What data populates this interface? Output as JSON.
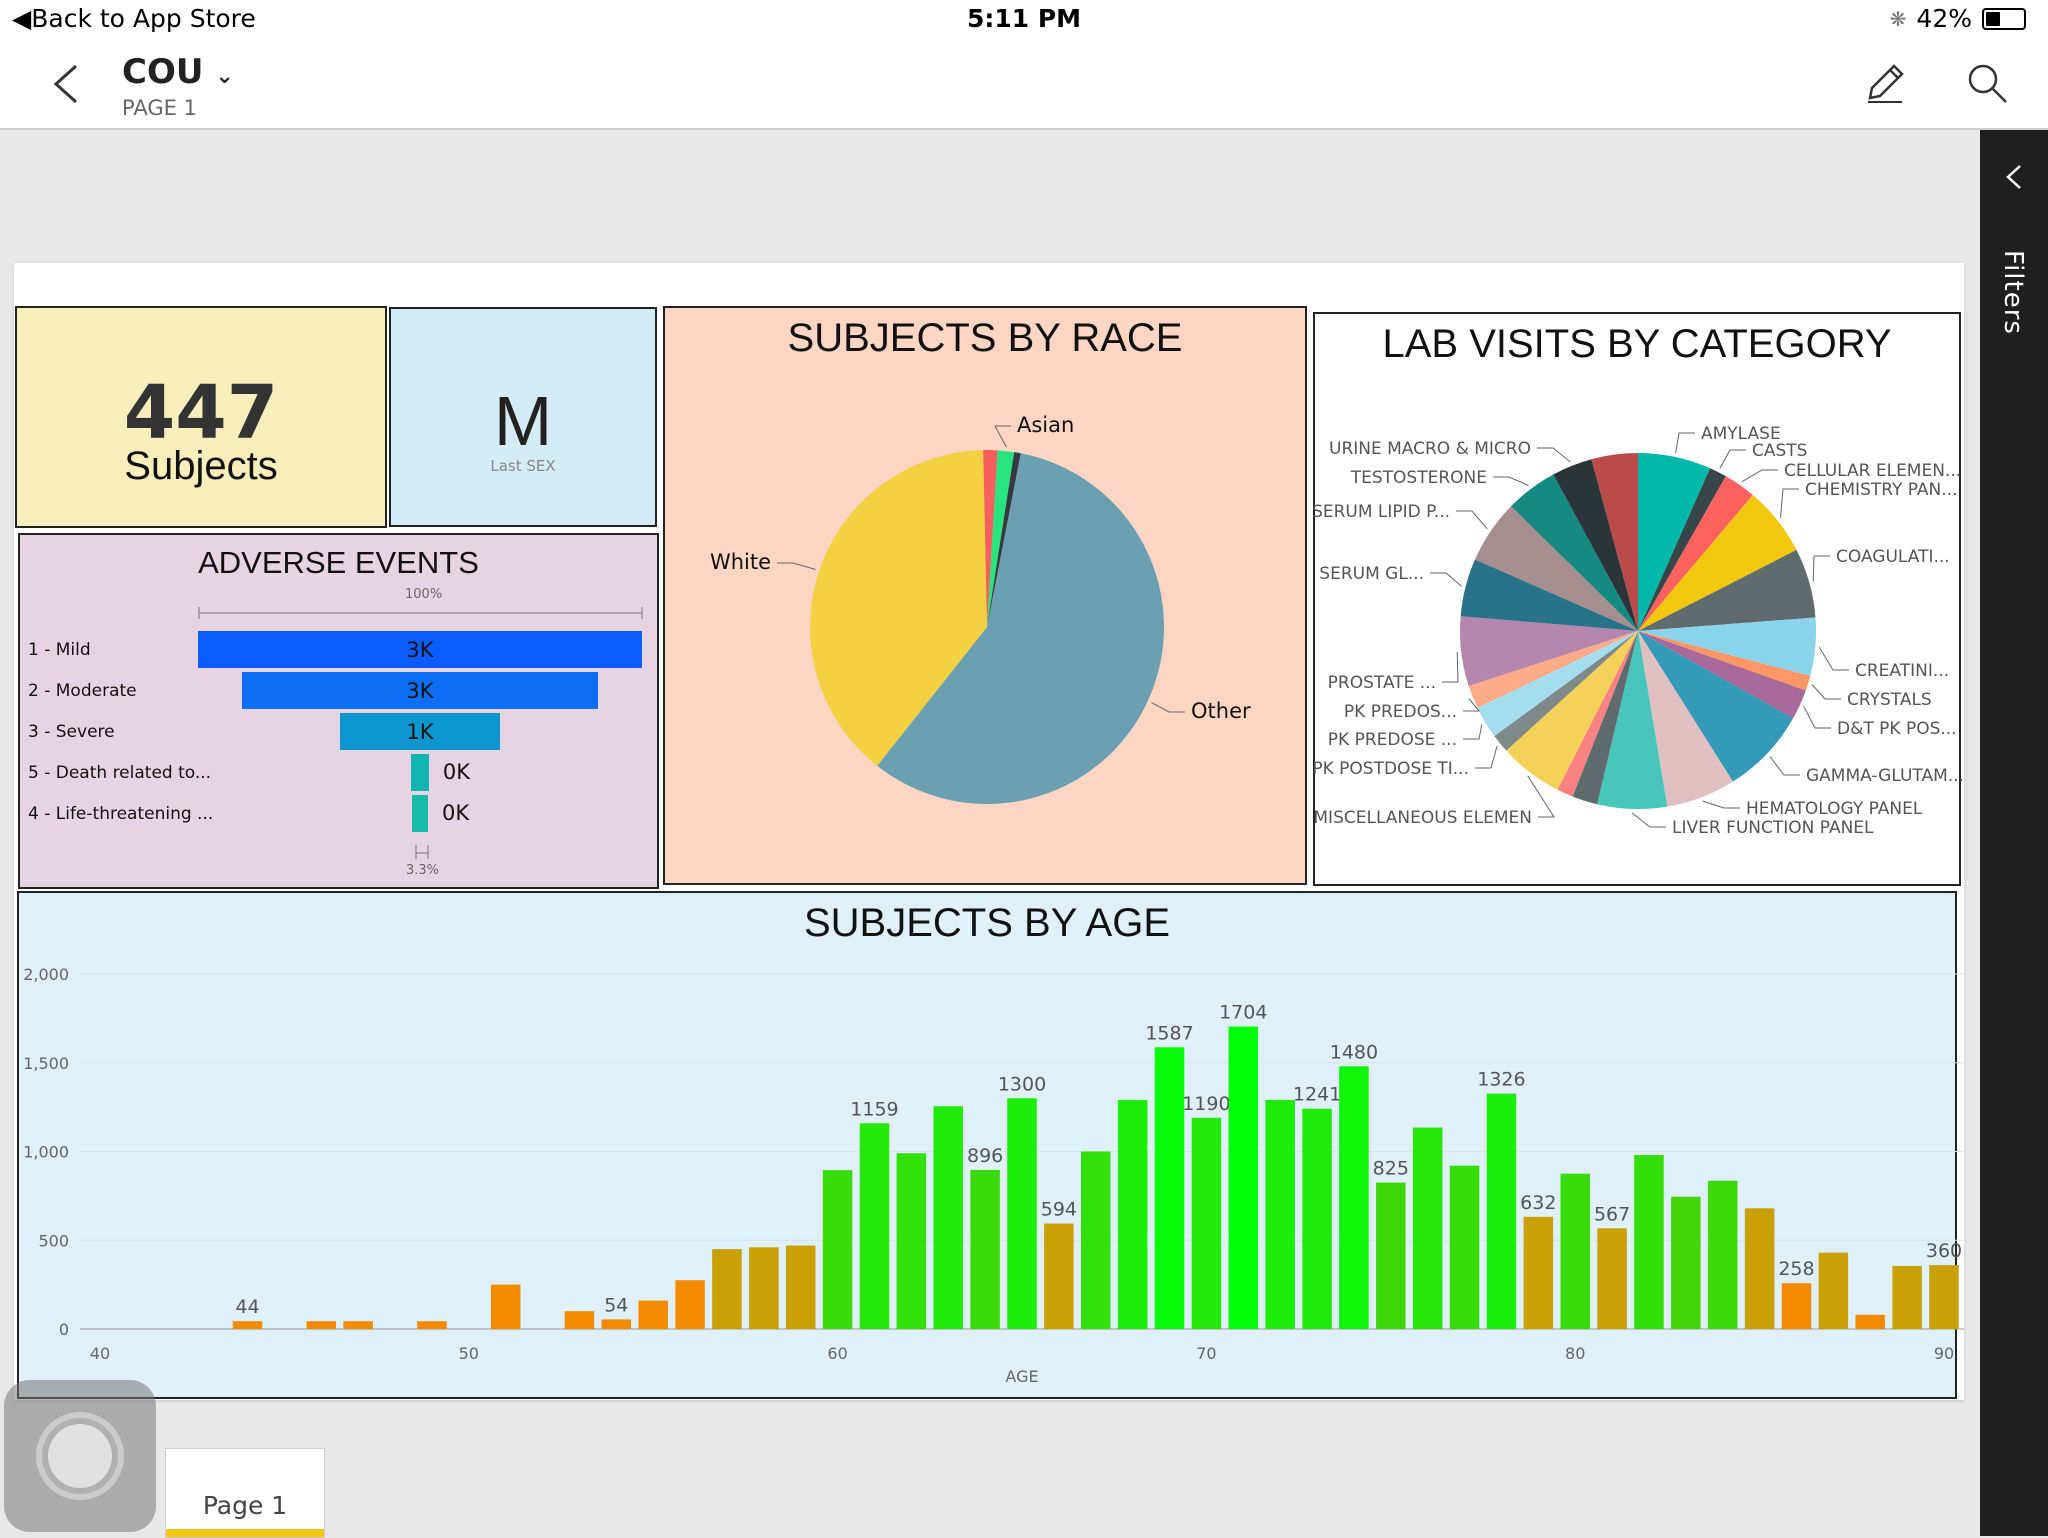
{
  "status": {
    "back_label": "Back to App Store",
    "time": "5:11 PM",
    "battery": "42%",
    "battery_level": 0.42
  },
  "header": {
    "report_title": "COU",
    "page_label": "PAGE 1"
  },
  "filters_label": "Filters",
  "page_tab": "Page 1",
  "cards": {
    "subjects_value": "447",
    "subjects_label": "Subjects",
    "sex_value": "M",
    "sex_label": "Last SEX"
  },
  "adverse": {
    "title": "ADVERSE EVENTS",
    "top_pct": "100%",
    "bottom_pct": "3.3%",
    "rows": [
      {
        "label": "1 - Mild",
        "value": "3K",
        "fraction": 1.0,
        "color": "#0b5cff"
      },
      {
        "label": "2 - Moderate",
        "value": "3K",
        "fraction": 0.8,
        "color": "#0c6ef3"
      },
      {
        "label": "3 - Severe",
        "value": "1K",
        "fraction": 0.36,
        "color": "#0e96cf"
      },
      {
        "label": "5 - Death related to...",
        "value": "0K",
        "fraction": 0.04,
        "color": "#12b4b0"
      },
      {
        "label": "4 - Life-threatening ...",
        "value": "0K",
        "fraction": 0.033,
        "color": "#14bba9"
      }
    ]
  },
  "chart_data": [
    {
      "type": "pie",
      "title": "SUBJECTS BY RACE",
      "slices": [
        {
          "label": "Other",
          "value": 57.6,
          "color": "#6aa0b1"
        },
        {
          "label": "White",
          "value": 39.0,
          "color": "#f3d143"
        },
        {
          "label": "",
          "value": 1.3,
          "color": "#f6605c"
        },
        {
          "label": "Asian",
          "value": 1.5,
          "color": "#28e57f"
        },
        {
          "label": "",
          "value": 0.6,
          "color": "#333b40"
        }
      ]
    },
    {
      "type": "pie",
      "title": "LAB VISITS BY CATEGORY",
      "slices": [
        {
          "label": "AMYLASE",
          "value": 6.3,
          "color": "#01b8aa"
        },
        {
          "label": "CASTS",
          "value": 1.5,
          "color": "#374649"
        },
        {
          "label": "CELLULAR ELEMEN...",
          "value": 2.8,
          "color": "#fd625e"
        },
        {
          "label": "CHEMISTRY PAN...",
          "value": 6.0,
          "color": "#f2c80f"
        },
        {
          "label": "COAGULATI...",
          "value": 6.0,
          "color": "#5f6b6d"
        },
        {
          "label": "CREATINI...",
          "value": 5.0,
          "color": "#8ad4eb"
        },
        {
          "label": "CRYSTALS",
          "value": 1.3,
          "color": "#fe9666"
        },
        {
          "label": "D&T PK POS...",
          "value": 2.6,
          "color": "#a66999"
        },
        {
          "label": "GAMMA-GLUTAM...",
          "value": 7.5,
          "color": "#3599b8"
        },
        {
          "label": "HEMATOLOGY PANEL",
          "value": 6.0,
          "color": "#dfbfbf"
        },
        {
          "label": "LIVER FUNCTION PANEL",
          "value": 6.0,
          "color": "#4ac5bb"
        },
        {
          "label": "",
          "value": 2.2,
          "color": "#5f6b6d"
        },
        {
          "label": "",
          "value": 1.4,
          "color": "#fb8281"
        },
        {
          "label": "MISCELLANEOUS ELEMEN",
          "value": 5.5,
          "color": "#f4d25a"
        },
        {
          "label": "PK POSTDOSE TI...",
          "value": 1.6,
          "color": "#7f898a"
        },
        {
          "label": "PK PREDOSE ...",
          "value": 2.8,
          "color": "#a4ddee"
        },
        {
          "label": "PK PREDOS...",
          "value": 2.0,
          "color": "#fdab89"
        },
        {
          "label": "PROSTATE ...",
          "value": 6.0,
          "color": "#b687ac"
        },
        {
          "label": "SERUM GL...",
          "value": 5.0,
          "color": "#28738a"
        },
        {
          "label": "SERUM LIPID P...",
          "value": 5.5,
          "color": "#a78f8f"
        },
        {
          "label": "TESTOSTERONE",
          "value": 4.5,
          "color": "#168980"
        },
        {
          "label": "URINE MACRO & MICRO",
          "value": 3.5,
          "color": "#293537"
        },
        {
          "label": "",
          "value": 4.0,
          "color": "#bb4a4a"
        }
      ]
    },
    {
      "type": "bar",
      "title": "SUBJECTS BY AGE",
      "xlabel": "AGE",
      "ylabel": "",
      "xlim": [
        40,
        90
      ],
      "ylim": [
        0,
        2000
      ],
      "yticks": [
        0,
        500,
        1000,
        1500,
        2000
      ],
      "ytick_labels": [
        "0",
        "500",
        "1,000",
        "1,500",
        "2,000"
      ],
      "xticks": [
        40,
        50,
        60,
        70,
        80,
        90
      ],
      "x": [
        44,
        46,
        47,
        49,
        51,
        53,
        54,
        55,
        56,
        57,
        58,
        59,
        60,
        61,
        62,
        63,
        64,
        65,
        66,
        67,
        68,
        69,
        70,
        71,
        72,
        73,
        74,
        75,
        76,
        77,
        78,
        79,
        80,
        81,
        82,
        83,
        84,
        85,
        86,
        87,
        88,
        89,
        90
      ],
      "values": [
        44,
        44,
        44,
        44,
        250,
        100,
        54,
        160,
        275,
        450,
        460,
        470,
        895,
        1159,
        990,
        1255,
        896,
        1300,
        594,
        1000,
        1290,
        1587,
        1190,
        1704,
        1290,
        1241,
        1480,
        825,
        1135,
        920,
        1326,
        632,
        875,
        567,
        980,
        745,
        835,
        680,
        258,
        430,
        80,
        355,
        360
      ],
      "data_labels": {
        "44": "44",
        "54": "54",
        "61": "1159",
        "64": "896",
        "65": "1300",
        "66": "594",
        "69": "1587",
        "70": "1190",
        "71": "1704",
        "73": "1241",
        "74": "1480",
        "75": "825",
        "78": "1326",
        "79": "632",
        "81": "567",
        "86": "258",
        "90": "360"
      }
    }
  ]
}
